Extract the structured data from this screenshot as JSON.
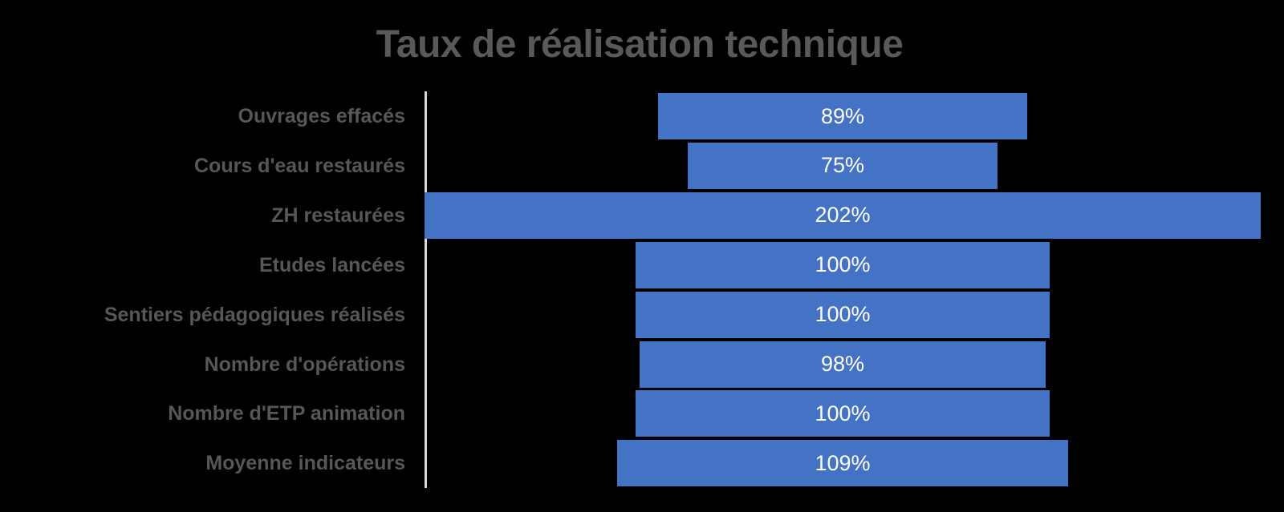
{
  "title": "Taux de réalisation technique",
  "colors": {
    "background": "#000000",
    "bar": "#4472c4",
    "title_text": "#595959",
    "category_label_text": "#575757",
    "value_label_text": "#ffffff",
    "axis_line": "#d9d9d9"
  },
  "chart_data": {
    "type": "bar",
    "subtype": "horizontal-centered-funnel",
    "title": "Taux de réalisation technique",
    "categories": [
      "Ouvrages effacés",
      "Cours d'eau restaurés",
      "ZH restaurées",
      "Etudes lancées",
      "Sentiers pédagogiques réalisés",
      "Nombre d'opérations",
      "Nombre d'ETP animation",
      "Moyenne indicateurs"
    ],
    "values": [
      89,
      75,
      202,
      100,
      100,
      98,
      100,
      109
    ],
    "value_labels": [
      "89%",
      "75%",
      "202%",
      "100%",
      "100%",
      "98%",
      "100%",
      "109%"
    ],
    "xlabel": "",
    "ylabel": "",
    "xlim_percent": [
      0,
      202
    ],
    "grid": false,
    "legend": "none",
    "axis_line": "vertical-left-of-bars",
    "value_label_position": "center-of-bar"
  }
}
